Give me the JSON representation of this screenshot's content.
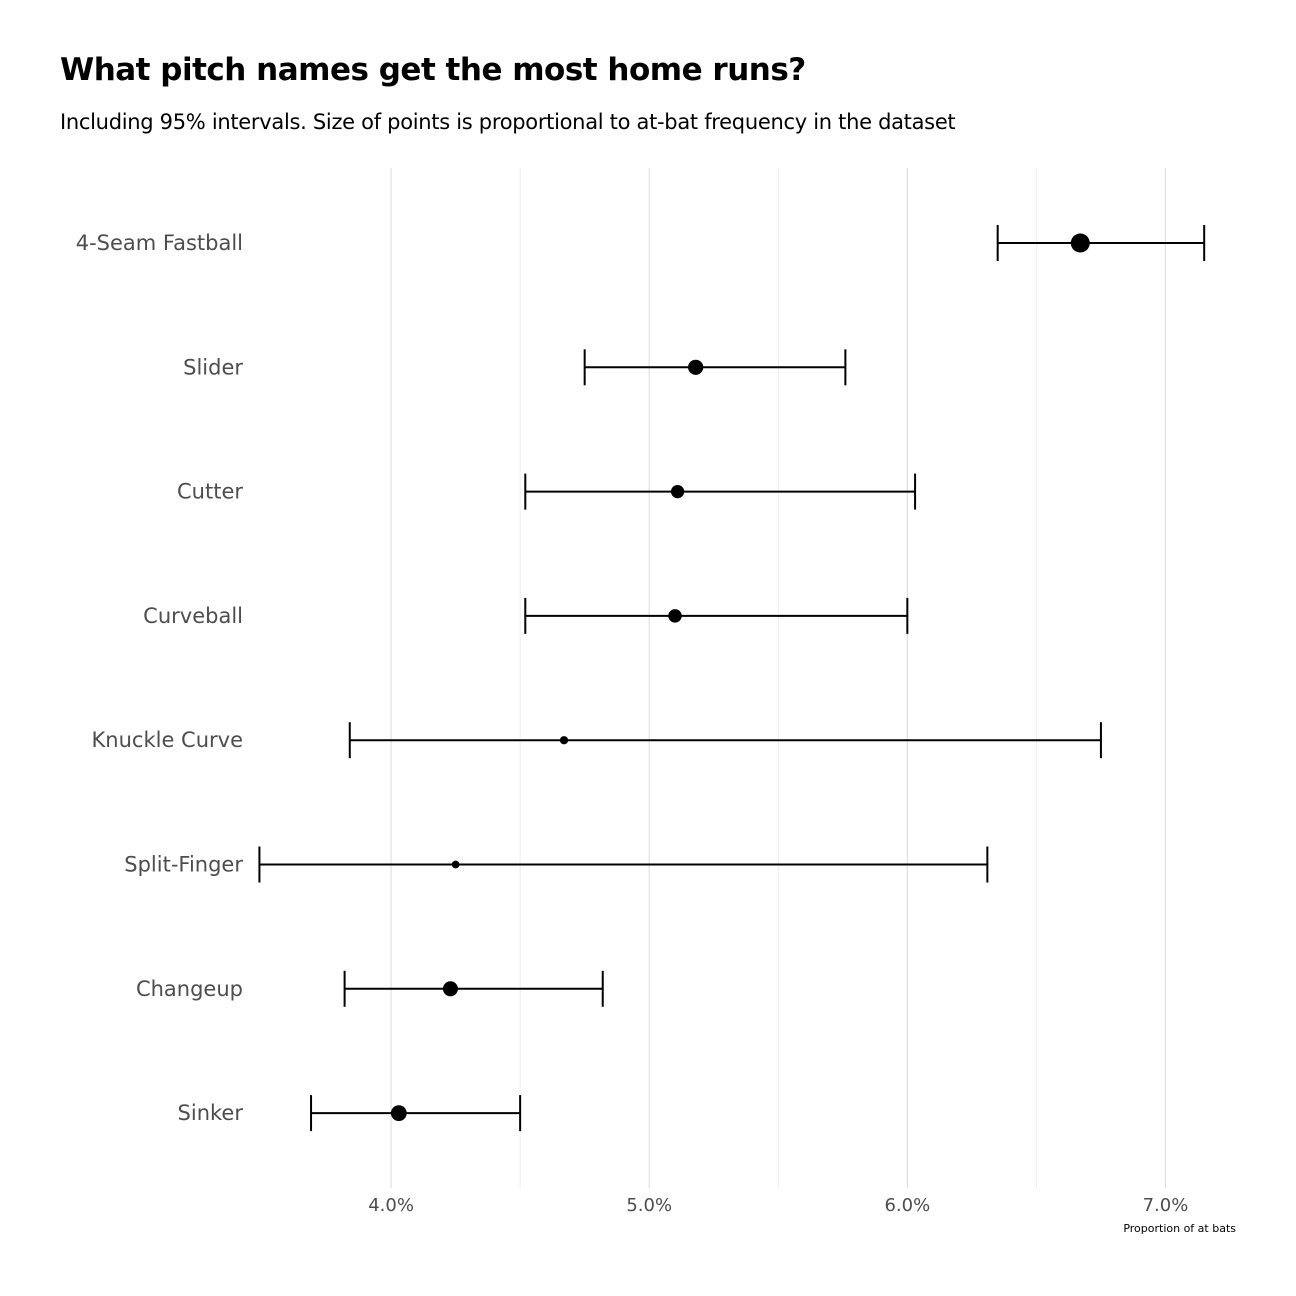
{
  "title": "What pitch names get the most home runs?",
  "subtitle": "Including 95% intervals. Size of points is proportional to at-bat frequency in the dataset",
  "chart_data": {
    "type": "scatter",
    "subtype": "dot-with-interval",
    "title": "What pitch names get the most home runs?",
    "subtitle": "Including 95% intervals. Size of points is proportional to at-bat frequency in the dataset",
    "xlabel": "Proportion of at bats",
    "ylabel": "",
    "xlim": [
      0.035,
      0.0725
    ],
    "xticks": [
      0.04,
      0.05,
      0.06,
      0.07
    ],
    "xtick_labels": [
      "4.0%",
      "5.0%",
      "6.0%",
      "7.0%"
    ],
    "grid": true,
    "legend": "none",
    "point_color": "#000000",
    "categories": [
      "4-Seam Fastball",
      "Slider",
      "Cutter",
      "Curveball",
      "Knuckle Curve",
      "Split-Finger",
      "Changeup",
      "Sinker"
    ],
    "estimate": [
      0.0667,
      0.0518,
      0.0511,
      0.051,
      0.0467,
      0.0425,
      0.0423,
      0.0403
    ],
    "lower": [
      0.0635,
      0.0475,
      0.0452,
      0.0452,
      0.0384,
      0.0349,
      0.0382,
      0.0369
    ],
    "upper": [
      0.0715,
      0.0576,
      0.0603,
      0.06,
      0.0675,
      0.0631,
      0.0482,
      0.045
    ],
    "relative_frequency": [
      1.0,
      0.56,
      0.38,
      0.4,
      0.08,
      0.06,
      0.54,
      0.62
    ]
  }
}
